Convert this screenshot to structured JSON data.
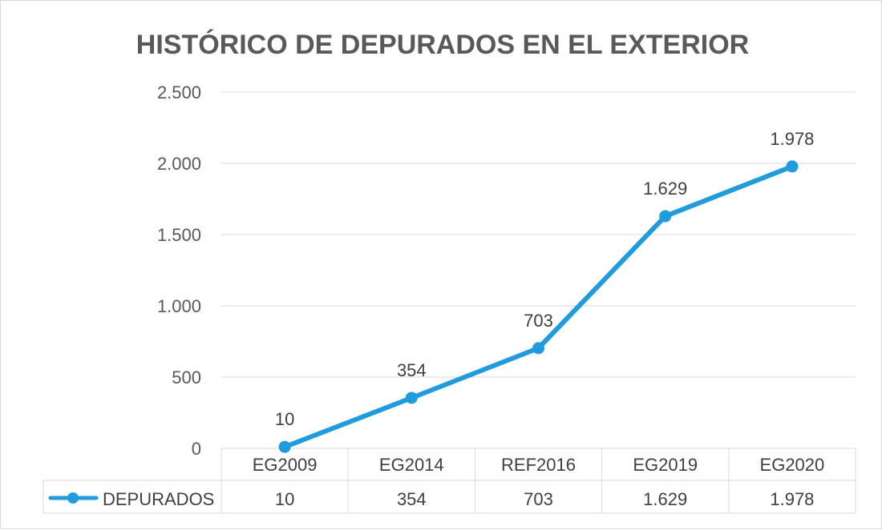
{
  "chart_data": {
    "type": "line",
    "title": "HISTÓRICO DE DEPURADOS EN EL EXTERIOR",
    "categories": [
      "EG2009",
      "EG2014",
      "REF2016",
      "EG2019",
      "EG2020"
    ],
    "series": [
      {
        "name": "DEPURADOS",
        "values": [
          10,
          354,
          703,
          1629,
          1978
        ],
        "labels": [
          "10",
          "354",
          "703",
          "1.629",
          "1.978"
        ],
        "color": "#1f9bde"
      }
    ],
    "ylim": [
      0,
      2500
    ],
    "yticks": [
      0,
      500,
      1000,
      1500,
      2000,
      2500
    ],
    "ytick_labels": [
      "0",
      "500",
      "1.000",
      "1.500",
      "2.000",
      "2.500"
    ],
    "grid": true,
    "data_table": true
  }
}
